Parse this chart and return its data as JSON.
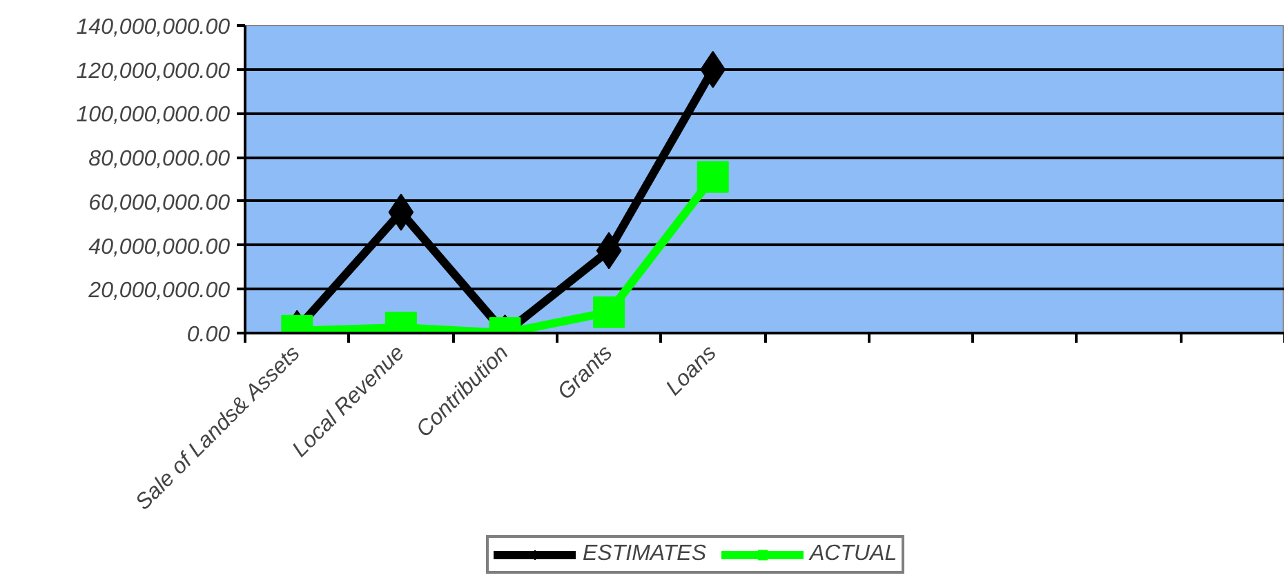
{
  "chart_data": {
    "type": "line",
    "categories": [
      "Sale of Lands& Assets",
      "Local Revenue",
      "Contribution",
      "Grants",
      "Loans",
      null,
      null,
      null,
      null,
      null
    ],
    "series": [
      {
        "name": "ESTIMATES",
        "color": "#000000",
        "marker": "diamond",
        "values": [
          2000000,
          55000000,
          0,
          37500000,
          120000000,
          null,
          null,
          null,
          null,
          null
        ]
      },
      {
        "name": "ACTUAL",
        "color": "#00ff00",
        "marker": "square",
        "values": [
          1000000,
          2500000,
          0,
          9500000,
          71000000,
          null,
          null,
          null,
          null,
          null
        ]
      }
    ],
    "ylim": [
      0,
      140000000
    ],
    "yticks": [
      {
        "value": 0,
        "label": "0.00"
      },
      {
        "value": 20000000,
        "label": "20,000,000.00"
      },
      {
        "value": 40000000,
        "label": "40,000,000.00"
      },
      {
        "value": 60000000,
        "label": "60,000,000.00"
      },
      {
        "value": 80000000,
        "label": "80,000,000.00"
      },
      {
        "value": 100000000,
        "label": "100,000,000.00"
      },
      {
        "value": 120000000,
        "label": "120,000,000.00"
      },
      {
        "value": 140000000,
        "label": "140,000,000.00"
      }
    ],
    "grid": "y",
    "legend": "bottom"
  }
}
